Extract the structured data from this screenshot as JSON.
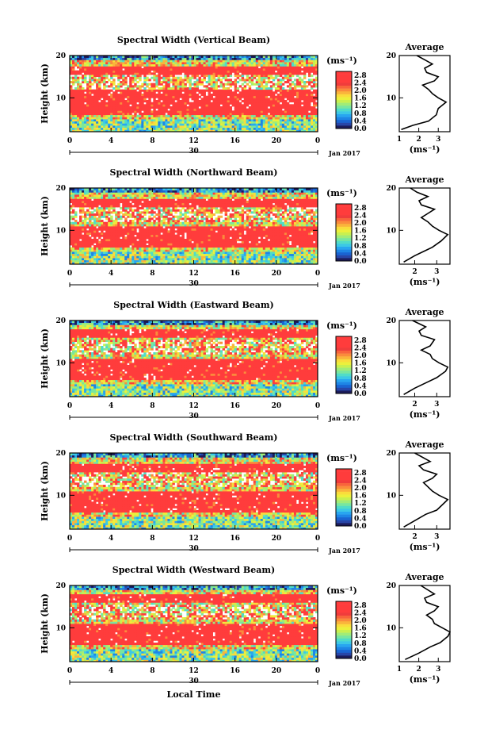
{
  "figure": {
    "xlabel": "Local Time",
    "date_label": "Jan 2017",
    "date_tick": "30"
  },
  "colors": {
    "scale": [
      "#1c1c5c",
      "#2846a8",
      "#1a64d2",
      "#1e86e6",
      "#28a6f0",
      "#3cc8e6",
      "#50dcc8",
      "#78e6a0",
      "#a0ec78",
      "#c8f050",
      "#ecf03c",
      "#fadc3c",
      "#fab43c",
      "#fa8c3c",
      "#f8643c",
      "#f03c3c"
    ],
    "saturated": "#ff3c3c",
    "empty": "#ffffff"
  },
  "chart_data": [
    {
      "type": "heatmap",
      "title": "Spectral Width (Vertical Beam)",
      "ylabel": "Height (km)",
      "x_ticks": [
        "0",
        "4",
        "8",
        "12",
        "16",
        "20",
        "0"
      ],
      "y_ticks": [
        "20",
        "10"
      ],
      "xlim": [
        0,
        24
      ],
      "ylim": [
        2,
        20
      ],
      "colorbar_unit": "(ms⁻¹)",
      "colorbar_ticks": [
        "2.8",
        "2.4",
        "2.0",
        "1.6",
        "1.2",
        "0.8",
        "0.4",
        "0.0"
      ],
      "colorbar_range": [
        0,
        3.0
      ],
      "avg_title": "Average",
      "avg_unit": "(ms⁻¹)",
      "avg_xticks": [
        "1",
        "2",
        "3"
      ],
      "avg_xlim": [
        1,
        3.6
      ],
      "avg_yticks": [
        "20",
        "10"
      ],
      "avg_profile": [
        [
          1.1,
          2.5
        ],
        [
          1.7,
          3.5
        ],
        [
          2.5,
          4.5
        ],
        [
          2.9,
          6
        ],
        [
          3.0,
          7.5
        ],
        [
          3.4,
          9
        ],
        [
          3.0,
          10
        ],
        [
          2.7,
          11
        ],
        [
          2.5,
          12
        ],
        [
          2.2,
          13
        ],
        [
          2.8,
          14
        ],
        [
          3.0,
          15
        ],
        [
          2.4,
          16
        ],
        [
          2.3,
          17
        ],
        [
          2.7,
          18
        ],
        [
          2.3,
          19
        ],
        [
          1.9,
          20
        ]
      ],
      "strong_bands": [
        [
          6,
          12
        ],
        [
          15.5,
          17.5
        ]
      ]
    },
    {
      "type": "heatmap",
      "title": "Spectral Width (Northward Beam)",
      "ylabel": "Height (km)",
      "x_ticks": [
        "0",
        "4",
        "8",
        "12",
        "16",
        "20",
        "0"
      ],
      "y_ticks": [
        "20",
        "10"
      ],
      "xlim": [
        0,
        24
      ],
      "ylim": [
        2,
        20
      ],
      "colorbar_unit": "(ms⁻¹)",
      "colorbar_ticks": [
        "2.8",
        "2.4",
        "2.0",
        "1.6",
        "1.2",
        "0.8",
        "0.4",
        "0.0"
      ],
      "colorbar_range": [
        0,
        3.0
      ],
      "avg_title": "Average",
      "avg_unit": "(ms⁻¹)",
      "avg_xticks": [
        "2",
        "3"
      ],
      "avg_xlim": [
        1.3,
        3.6
      ],
      "avg_yticks": [
        "20",
        "10"
      ],
      "avg_profile": [
        [
          1.5,
          2.5
        ],
        [
          2.0,
          4
        ],
        [
          2.4,
          5
        ],
        [
          2.8,
          6
        ],
        [
          3.2,
          7.5
        ],
        [
          3.5,
          9
        ],
        [
          3.1,
          10
        ],
        [
          2.8,
          11
        ],
        [
          2.6,
          12
        ],
        [
          2.3,
          13
        ],
        [
          2.6,
          14
        ],
        [
          2.9,
          15
        ],
        [
          2.3,
          16
        ],
        [
          2.2,
          17
        ],
        [
          2.6,
          18
        ],
        [
          2.1,
          19
        ],
        [
          1.8,
          20
        ]
      ],
      "strong_bands": [
        [
          6,
          11
        ],
        [
          15.5,
          17.5
        ]
      ]
    },
    {
      "type": "heatmap",
      "title": "Spectral Width (Eastward Beam)",
      "ylabel": "Height (km)",
      "x_ticks": [
        "0",
        "4",
        "8",
        "12",
        "16",
        "20",
        "0"
      ],
      "y_ticks": [
        "20",
        "10"
      ],
      "xlim": [
        0,
        24
      ],
      "ylim": [
        2,
        20
      ],
      "colorbar_unit": "(ms⁻¹)",
      "colorbar_ticks": [
        "2.8",
        "2.4",
        "2.0",
        "1.6",
        "1.2",
        "0.8",
        "0.4",
        "0.0"
      ],
      "colorbar_range": [
        0,
        3.0
      ],
      "avg_title": "Average",
      "avg_unit": "(ms⁻¹)",
      "avg_xticks": [
        "2",
        "3"
      ],
      "avg_xlim": [
        1.3,
        3.6
      ],
      "avg_yticks": [
        "20",
        "10"
      ],
      "avg_profile": [
        [
          1.5,
          2.5
        ],
        [
          2.0,
          4
        ],
        [
          2.6,
          5.5
        ],
        [
          3.0,
          6.5
        ],
        [
          3.4,
          8
        ],
        [
          3.5,
          9
        ],
        [
          3.1,
          10
        ],
        [
          2.8,
          11
        ],
        [
          2.7,
          12
        ],
        [
          2.3,
          13
        ],
        [
          2.7,
          14
        ],
        [
          2.9,
          15.5
        ],
        [
          2.3,
          16.5
        ],
        [
          2.2,
          17.5
        ],
        [
          2.5,
          18.5
        ],
        [
          1.9,
          20
        ]
      ],
      "strong_bands": [
        [
          6,
          11
        ],
        [
          16,
          18
        ]
      ]
    },
    {
      "type": "heatmap",
      "title": "Spectral Width (Southward Beam)",
      "ylabel": "Height (km)",
      "x_ticks": [
        "0",
        "4",
        "8",
        "12",
        "16",
        "20",
        "0"
      ],
      "y_ticks": [
        "20",
        "10"
      ],
      "xlim": [
        0,
        24
      ],
      "ylim": [
        2,
        20
      ],
      "colorbar_unit": "(ms⁻¹)",
      "colorbar_ticks": [
        "2.8",
        "2.4",
        "2.0",
        "1.6",
        "1.2",
        "0.8",
        "0.4",
        "0.0"
      ],
      "colorbar_range": [
        0,
        3.0
      ],
      "avg_title": "Average",
      "avg_unit": "(ms⁻¹)",
      "avg_xticks": [
        "2",
        "3"
      ],
      "avg_xlim": [
        1.3,
        3.6
      ],
      "avg_yticks": [
        "20",
        "10"
      ],
      "avg_profile": [
        [
          1.5,
          2.5
        ],
        [
          2.0,
          4
        ],
        [
          2.5,
          5.5
        ],
        [
          3.0,
          6.5
        ],
        [
          3.3,
          8
        ],
        [
          3.5,
          9
        ],
        [
          3.1,
          10
        ],
        [
          2.8,
          11
        ],
        [
          2.6,
          12
        ],
        [
          2.4,
          13
        ],
        [
          2.8,
          14
        ],
        [
          3.0,
          15
        ],
        [
          2.4,
          16
        ],
        [
          2.2,
          17
        ],
        [
          2.7,
          18
        ],
        [
          2.0,
          20
        ]
      ],
      "strong_bands": [
        [
          6,
          11
        ],
        [
          15.5,
          17.5
        ]
      ]
    },
    {
      "type": "heatmap",
      "title": "Spectral Width (Westward Beam)",
      "ylabel": "Height (km)",
      "x_ticks": [
        "0",
        "4",
        "8",
        "12",
        "16",
        "20",
        "0"
      ],
      "y_ticks": [
        "20",
        "10"
      ],
      "xlim": [
        0,
        24
      ],
      "ylim": [
        2,
        20
      ],
      "colorbar_unit": "(ms⁻¹)",
      "colorbar_ticks": [
        "2.8",
        "2.4",
        "2.0",
        "1.6",
        "1.2",
        "0.8",
        "0.4",
        "0.0"
      ],
      "colorbar_range": [
        0,
        3.0
      ],
      "avg_title": "Average",
      "avg_unit": "(ms⁻¹)",
      "avg_xticks": [
        "1",
        "2",
        "3"
      ],
      "avg_xlim": [
        1,
        3.6
      ],
      "avg_yticks": [
        "20",
        "10"
      ],
      "avg_profile": [
        [
          1.3,
          2.5
        ],
        [
          2.0,
          4
        ],
        [
          2.6,
          5.5
        ],
        [
          3.1,
          6.5
        ],
        [
          3.5,
          8
        ],
        [
          3.6,
          9
        ],
        [
          3.2,
          10
        ],
        [
          2.8,
          11
        ],
        [
          2.7,
          12
        ],
        [
          2.4,
          13
        ],
        [
          2.8,
          14
        ],
        [
          3.0,
          15
        ],
        [
          2.4,
          16
        ],
        [
          2.3,
          17
        ],
        [
          2.8,
          18
        ],
        [
          2.1,
          20
        ]
      ],
      "strong_bands": [
        [
          6,
          11
        ],
        [
          16,
          18
        ]
      ]
    }
  ]
}
